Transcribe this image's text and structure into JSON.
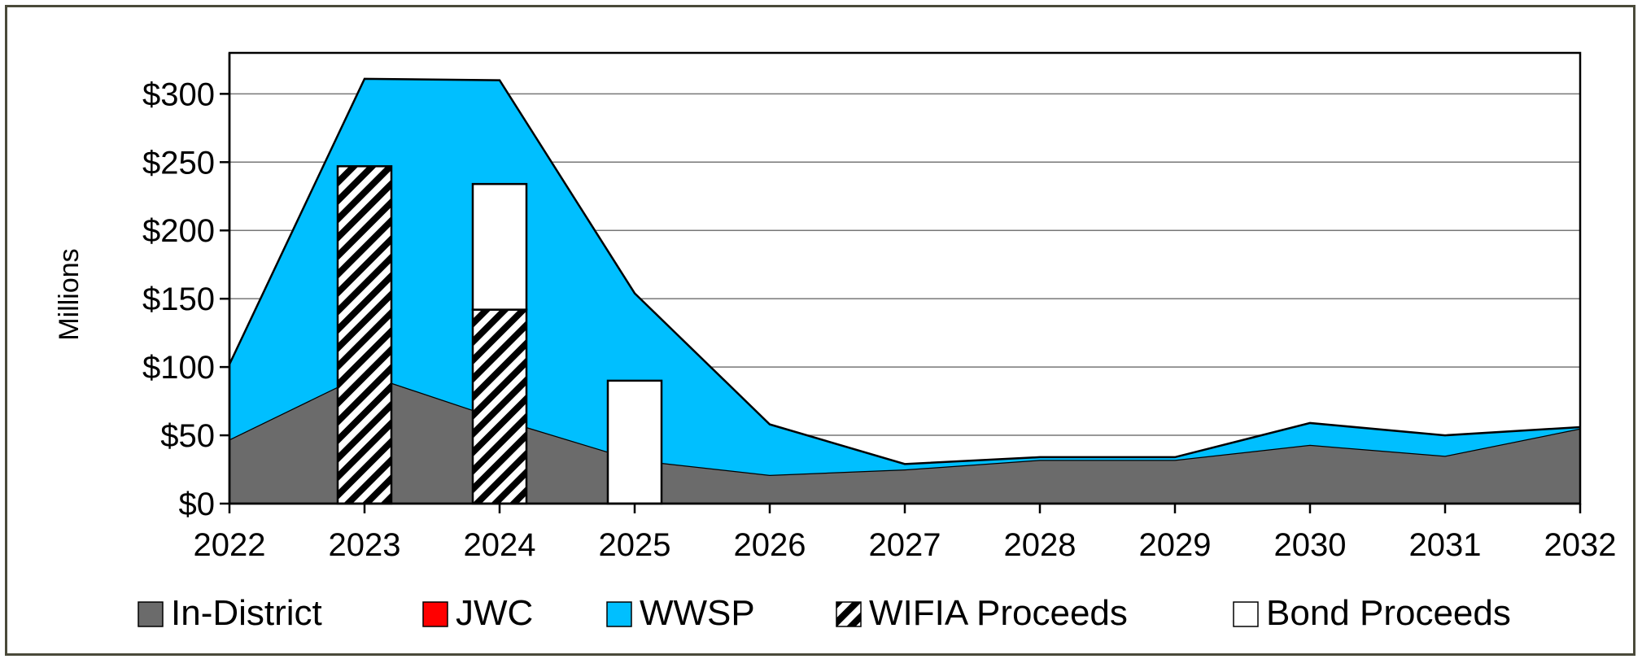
{
  "chart_data": {
    "type": "area",
    "title": "",
    "xlabel": "",
    "ylabel": "Millions",
    "x": [
      2022,
      2023,
      2024,
      2025,
      2026,
      2027,
      2028,
      2029,
      2030,
      2031,
      2032
    ],
    "ylim": [
      0,
      330
    ],
    "y_ticks": [
      0,
      50,
      100,
      150,
      200,
      250,
      300
    ],
    "y_tick_labels": [
      "$0",
      "$50",
      "$100",
      "$150",
      "$200",
      "$250",
      "$300"
    ],
    "grid": "horizontal",
    "legend_position": "bottom",
    "series": [
      {
        "name": "In-District",
        "kind": "area",
        "color": "#6b6b6b",
        "values": [
          47,
          95,
          62,
          32,
          21,
          25,
          32,
          32,
          43,
          35,
          55
        ]
      },
      {
        "name": "JWC",
        "kind": "area",
        "color": "#ff0000",
        "values": [
          0,
          0,
          0,
          0,
          0,
          0,
          0,
          0,
          0,
          0,
          0
        ]
      },
      {
        "name": "WWSP",
        "kind": "area",
        "color": "#00bfff",
        "values": [
          55,
          216,
          248,
          122,
          37,
          4,
          2,
          2,
          16,
          15,
          1
        ]
      },
      {
        "name": "WIFIA Proceeds",
        "kind": "bar",
        "pattern": "hatch",
        "values": [
          0,
          247,
          142,
          0,
          0,
          0,
          0,
          0,
          0,
          0,
          0
        ]
      },
      {
        "name": "Bond Proceeds",
        "kind": "bar",
        "color": "#ffffff",
        "values": [
          0,
          0,
          92,
          90,
          0,
          0,
          0,
          0,
          0,
          0,
          0
        ]
      }
    ]
  }
}
